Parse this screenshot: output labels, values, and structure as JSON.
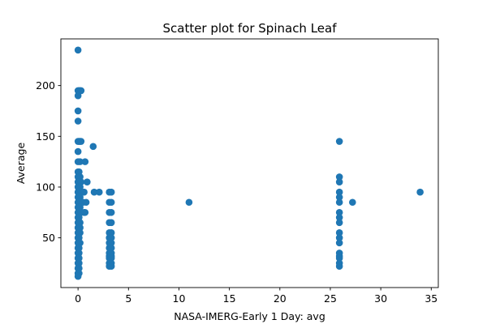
{
  "chart_data": {
    "type": "scatter",
    "title": "Scatter plot for Spinach Leaf",
    "xlabel": "NASA-IMERG-Early 1 Day: avg",
    "ylabel": "Average",
    "xlim": [
      -1.7,
      35.7
    ],
    "ylim": [
      1.0,
      246.0
    ],
    "xticks": [
      0,
      5,
      10,
      15,
      20,
      25,
      30,
      35
    ],
    "yticks": [
      50,
      100,
      150,
      200
    ],
    "grid": false,
    "legend": "none",
    "marker_color": "#1f77b4",
    "series": [
      {
        "points": [
          [
            0.0,
            235
          ],
          [
            0.0,
            195
          ],
          [
            0.1,
            195
          ],
          [
            0.2,
            195
          ],
          [
            0.3,
            195
          ],
          [
            0.0,
            190
          ],
          [
            0.0,
            175
          ],
          [
            0.0,
            165
          ],
          [
            0.0,
            145
          ],
          [
            0.1,
            145
          ],
          [
            0.2,
            145
          ],
          [
            0.3,
            145
          ],
          [
            0.0,
            135
          ],
          [
            0.0,
            125
          ],
          [
            0.2,
            125
          ],
          [
            0.0,
            115
          ],
          [
            0.1,
            115
          ],
          [
            0.0,
            110
          ],
          [
            0.2,
            110
          ],
          [
            0.0,
            105
          ],
          [
            0.1,
            105
          ],
          [
            0.3,
            105
          ],
          [
            0.0,
            100
          ],
          [
            0.2,
            100
          ],
          [
            0.0,
            95
          ],
          [
            0.1,
            95
          ],
          [
            0.2,
            95
          ],
          [
            0.3,
            95
          ],
          [
            0.4,
            95
          ],
          [
            0.0,
            90
          ],
          [
            0.2,
            90
          ],
          [
            0.0,
            85
          ],
          [
            0.1,
            85
          ],
          [
            0.2,
            85
          ],
          [
            0.3,
            85
          ],
          [
            0.0,
            80
          ],
          [
            0.2,
            80
          ],
          [
            0.0,
            75
          ],
          [
            0.1,
            75
          ],
          [
            0.3,
            75
          ],
          [
            0.0,
            70
          ],
          [
            0.1,
            70
          ],
          [
            0.0,
            65
          ],
          [
            0.1,
            65
          ],
          [
            0.2,
            65
          ],
          [
            0.0,
            60
          ],
          [
            0.2,
            60
          ],
          [
            0.0,
            55
          ],
          [
            0.1,
            55
          ],
          [
            0.2,
            55
          ],
          [
            0.0,
            50
          ],
          [
            0.1,
            50
          ],
          [
            0.0,
            45
          ],
          [
            0.1,
            45
          ],
          [
            0.2,
            45
          ],
          [
            0.0,
            40
          ],
          [
            0.1,
            40
          ],
          [
            0.0,
            35
          ],
          [
            0.1,
            35
          ],
          [
            0.0,
            30
          ],
          [
            0.1,
            30
          ],
          [
            0.0,
            25
          ],
          [
            0.1,
            25
          ],
          [
            0.0,
            20
          ],
          [
            0.1,
            20
          ],
          [
            0.0,
            15
          ],
          [
            0.1,
            15
          ],
          [
            0.0,
            12
          ],
          [
            0.7,
            125
          ],
          [
            0.6,
            95
          ],
          [
            0.5,
            85
          ],
          [
            0.9,
            105
          ],
          [
            0.8,
            85
          ],
          [
            0.6,
            75
          ],
          [
            0.7,
            75
          ],
          [
            1.5,
            140
          ],
          [
            1.6,
            95
          ],
          [
            2.1,
            95
          ],
          [
            3.1,
            95
          ],
          [
            3.3,
            95
          ],
          [
            3.1,
            85
          ],
          [
            3.3,
            85
          ],
          [
            3.1,
            75
          ],
          [
            3.3,
            75
          ],
          [
            3.1,
            65
          ],
          [
            3.3,
            65
          ],
          [
            3.1,
            55
          ],
          [
            3.3,
            55
          ],
          [
            3.1,
            50
          ],
          [
            3.3,
            50
          ],
          [
            3.1,
            45
          ],
          [
            3.3,
            45
          ],
          [
            3.1,
            40
          ],
          [
            3.3,
            40
          ],
          [
            3.1,
            35
          ],
          [
            3.3,
            35
          ],
          [
            3.1,
            32
          ],
          [
            3.3,
            32
          ],
          [
            3.1,
            30
          ],
          [
            3.3,
            30
          ],
          [
            3.1,
            25
          ],
          [
            3.3,
            25
          ],
          [
            3.1,
            22
          ],
          [
            3.3,
            22
          ],
          [
            11.0,
            85
          ],
          [
            25.9,
            145
          ],
          [
            25.9,
            110
          ],
          [
            25.9,
            105
          ],
          [
            25.9,
            95
          ],
          [
            25.9,
            90
          ],
          [
            25.9,
            85
          ],
          [
            25.9,
            75
          ],
          [
            25.9,
            70
          ],
          [
            25.9,
            65
          ],
          [
            25.9,
            55
          ],
          [
            25.9,
            50
          ],
          [
            25.9,
            45
          ],
          [
            25.9,
            35
          ],
          [
            25.9,
            32
          ],
          [
            25.9,
            30
          ],
          [
            25.9,
            25
          ],
          [
            25.9,
            22
          ],
          [
            27.2,
            85
          ],
          [
            33.9,
            95
          ]
        ]
      }
    ]
  }
}
